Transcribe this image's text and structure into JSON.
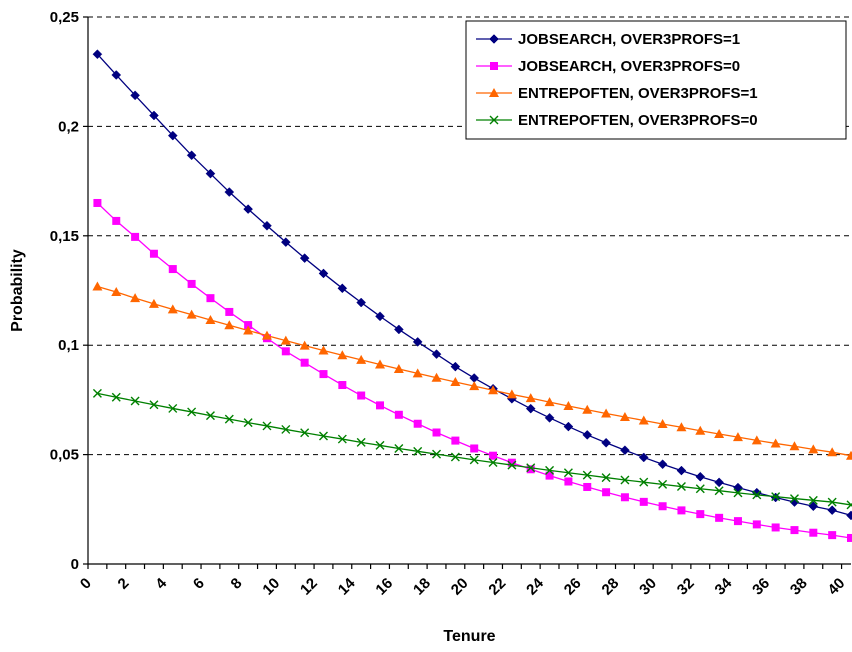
{
  "chart_data": {
    "type": "line",
    "title": "",
    "xlabel": "Tenure",
    "ylabel": "Probability",
    "xlim": [
      0,
      40.5
    ],
    "ylim": [
      0,
      0.25
    ],
    "x_ticks": [
      0,
      2,
      4,
      6,
      8,
      10,
      12,
      14,
      16,
      18,
      20,
      22,
      24,
      26,
      28,
      30,
      32,
      34,
      36,
      38,
      40
    ],
    "x_tick_labels": [
      "0",
      "2",
      "4",
      "6",
      "8",
      "10",
      "12",
      "14",
      "16",
      "18",
      "20",
      "22",
      "24",
      "26",
      "28",
      "30",
      "32",
      "34",
      "36",
      "38",
      "40"
    ],
    "y_ticks": [
      0,
      0.05,
      0.1,
      0.15,
      0.2,
      0.25
    ],
    "y_tick_labels": [
      "0",
      "0,05",
      "0,1",
      "0,15",
      "0,2",
      "0,25"
    ],
    "grid": "horizontal dashed",
    "legend_position": "top-right",
    "x": [
      0.5,
      1.5,
      2.5,
      3.5,
      4.5,
      5.5,
      6.5,
      7.5,
      8.5,
      9.5,
      10.5,
      11.5,
      12.5,
      13.5,
      14.5,
      15.5,
      16.5,
      17.5,
      18.5,
      19.5,
      20.5,
      21.5,
      22.5,
      23.5,
      24.5,
      25.5,
      26.5,
      27.5,
      28.5,
      29.5,
      30.5,
      31.5,
      32.5,
      33.5,
      34.5,
      35.5,
      36.5,
      37.5,
      38.5,
      39.5,
      40.5
    ],
    "series": [
      {
        "name": "JOBSEARCH, OVER3PROFS=1",
        "color": "#000080",
        "marker": "diamond",
        "values": [
          0.233,
          0.2235,
          0.2142,
          0.205,
          0.1958,
          0.1868,
          0.1784,
          0.17,
          0.1622,
          0.1546,
          0.1471,
          0.1398,
          0.1328,
          0.126,
          0.1195,
          0.1132,
          0.1072,
          0.1015,
          0.0959,
          0.0902,
          0.085,
          0.0801,
          0.0755,
          0.071,
          0.0668,
          0.0628,
          0.059,
          0.0554,
          0.052,
          0.0487,
          0.0456,
          0.0427,
          0.0399,
          0.0373,
          0.0349,
          0.0326,
          0.0304,
          0.0283,
          0.0264,
          0.0246,
          0.0222
        ]
      },
      {
        "name": "JOBSEARCH, OVER3PROFS=0",
        "color": "#ff00ff",
        "marker": "square",
        "values": [
          0.165,
          0.1568,
          0.1495,
          0.1418,
          0.1348,
          0.128,
          0.1215,
          0.1152,
          0.1092,
          0.1032,
          0.0972,
          0.092,
          0.0868,
          0.0818,
          0.077,
          0.0725,
          0.0682,
          0.0641,
          0.0601,
          0.0564,
          0.0528,
          0.0495,
          0.0463,
          0.0433,
          0.0404,
          0.0377,
          0.0352,
          0.0328,
          0.0305,
          0.0284,
          0.0264,
          0.0245,
          0.0228,
          0.0211,
          0.0196,
          0.0181,
          0.0167,
          0.0155,
          0.0143,
          0.0132,
          0.0119
        ]
      },
      {
        "name": "ENTREPOFTEN, OVER3PROFS=1",
        "color": "#ff6600",
        "marker": "triangle",
        "values": [
          0.1268,
          0.1243,
          0.1215,
          0.1189,
          0.1164,
          0.114,
          0.1115,
          0.1091,
          0.1067,
          0.1044,
          0.1021,
          0.0998,
          0.0976,
          0.0954,
          0.0933,
          0.0912,
          0.0891,
          0.0871,
          0.0851,
          0.0832,
          0.0813,
          0.0794,
          0.0775,
          0.0758,
          0.074,
          0.0722,
          0.0705,
          0.0688,
          0.0672,
          0.0656,
          0.064,
          0.0625,
          0.0609,
          0.0594,
          0.058,
          0.0565,
          0.0551,
          0.0538,
          0.0524,
          0.0511,
          0.0495
        ]
      },
      {
        "name": "ENTREPOFTEN, OVER3PROFS=0",
        "color": "#008000",
        "marker": "x",
        "values": [
          0.078,
          0.0762,
          0.0745,
          0.0728,
          0.0711,
          0.0695,
          0.0678,
          0.0662,
          0.0646,
          0.0631,
          0.0615,
          0.06,
          0.0585,
          0.0571,
          0.0556,
          0.0542,
          0.0528,
          0.0515,
          0.0502,
          0.0489,
          0.0476,
          0.0464,
          0.0452,
          0.044,
          0.0428,
          0.0417,
          0.0406,
          0.0395,
          0.0384,
          0.0374,
          0.0364,
          0.0354,
          0.0344,
          0.0335,
          0.0325,
          0.0316,
          0.0308,
          0.0299,
          0.0291,
          0.0283,
          0.027
        ]
      }
    ]
  }
}
